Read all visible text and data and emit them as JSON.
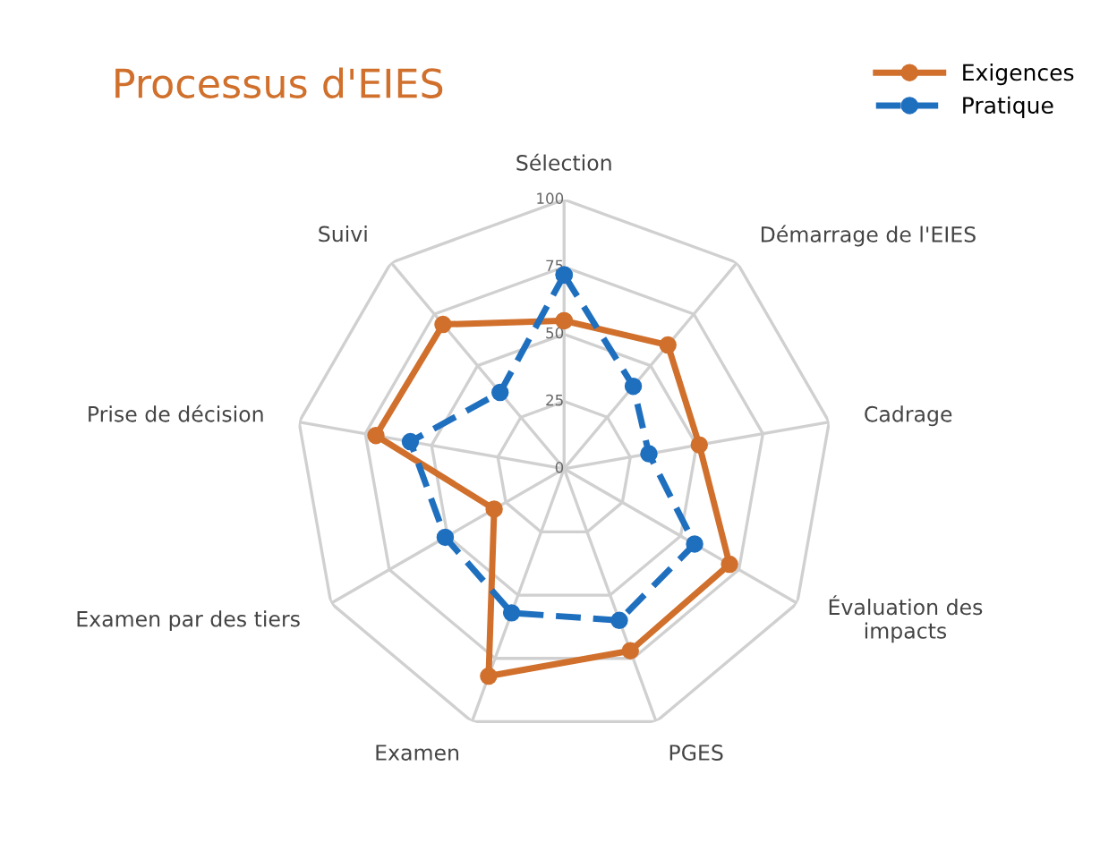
{
  "chart_data": {
    "type": "radar",
    "title": "Processus d'EIES",
    "categories": [
      "Sélection",
      "Démarrage de l'EIES",
      "Cadrage",
      "Évaluation des\nimpacts",
      "PGES",
      "Examen",
      "Examen par des tiers",
      "Prise de décision",
      "Suivi"
    ],
    "series": [
      {
        "name": "Exigences",
        "color": "#d0702c",
        "line_style": "solid",
        "values": [
          55,
          60,
          51,
          71,
          72,
          82,
          30,
          71,
          70
        ]
      },
      {
        "name": "Pratique",
        "color": "#1f6fbf",
        "line_style": "dashed",
        "values": [
          72,
          40,
          32,
          56,
          60,
          57,
          51,
          58,
          37
        ]
      }
    ],
    "ylim": [
      0,
      100
    ],
    "yticks": [
      0,
      25,
      50,
      75,
      100
    ],
    "grid": true,
    "marker": "circle",
    "legend": "top right"
  }
}
